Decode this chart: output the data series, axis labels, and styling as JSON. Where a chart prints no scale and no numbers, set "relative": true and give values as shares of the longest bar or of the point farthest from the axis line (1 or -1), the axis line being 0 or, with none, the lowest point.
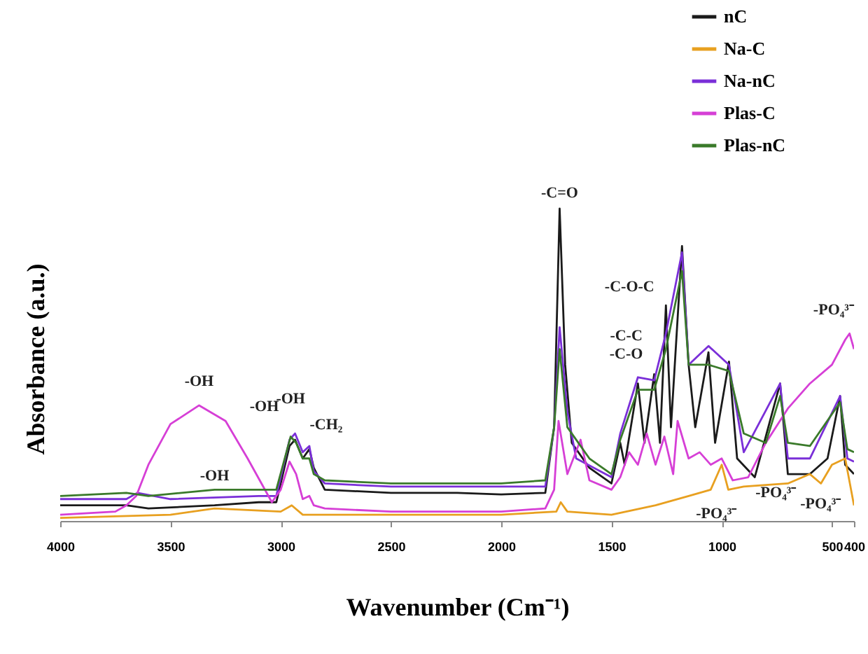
{
  "chart_data": {
    "type": "line",
    "relative": true,
    "xlabel": "Wavenumber (Cm⁻¹)",
    "ylabel": "Absorbance (a.u.)",
    "xlim": [
      4000,
      400
    ],
    "xticks": [
      4000,
      3500,
      3000,
      2500,
      2000,
      1500,
      1000,
      500,
      400
    ],
    "grid": false,
    "legend": "top right",
    "line_style": "solid",
    "marker": "none",
    "series": [
      {
        "name": "nC",
        "color": "#1a1a1a",
        "x": [
          4000,
          3700,
          3600,
          3300,
          3100,
          3020,
          2960,
          2935,
          2900,
          2870,
          2850,
          2800,
          2500,
          2200,
          2000,
          1800,
          1760,
          1735,
          1710,
          1680,
          1600,
          1500,
          1460,
          1440,
          1380,
          1350,
          1306,
          1280,
          1253,
          1230,
          1180,
          1150,
          1120,
          1060,
          1030,
          967,
          930,
          850,
          735,
          700,
          600,
          520,
          463,
          440,
          400
        ],
        "values": [
          0.05,
          0.05,
          0.04,
          0.05,
          0.06,
          0.06,
          0.24,
          0.26,
          0.2,
          0.23,
          0.17,
          0.1,
          0.09,
          0.09,
          0.085,
          0.09,
          0.3,
          1.0,
          0.5,
          0.25,
          0.17,
          0.12,
          0.25,
          0.18,
          0.44,
          0.25,
          0.47,
          0.25,
          0.69,
          0.3,
          0.88,
          0.5,
          0.3,
          0.54,
          0.25,
          0.51,
          0.2,
          0.14,
          0.44,
          0.15,
          0.15,
          0.2,
          0.4,
          0.18,
          0.15
        ]
      },
      {
        "name": "Na-C",
        "color": "#e8a020",
        "x": [
          4000,
          3500,
          3300,
          3000,
          2950,
          2900,
          2500,
          2000,
          1750,
          1730,
          1700,
          1500,
          1300,
          1150,
          1050,
          1000,
          970,
          900,
          700,
          600,
          550,
          500,
          440,
          400
        ],
        "values": [
          0.01,
          0.02,
          0.04,
          0.03,
          0.05,
          0.02,
          0.02,
          0.02,
          0.03,
          0.06,
          0.03,
          0.02,
          0.05,
          0.08,
          0.1,
          0.18,
          0.1,
          0.11,
          0.12,
          0.15,
          0.12,
          0.18,
          0.2,
          0.05
        ]
      },
      {
        "name": "Na-nC",
        "color": "#7a2fd8",
        "x": [
          4000,
          3700,
          3650,
          3500,
          3100,
          3020,
          2960,
          2935,
          2900,
          2870,
          2850,
          2800,
          2500,
          2000,
          1800,
          1760,
          1735,
          1700,
          1660,
          1500,
          1460,
          1380,
          1306,
          1253,
          1180,
          1150,
          1060,
          967,
          900,
          735,
          700,
          600,
          463,
          430,
          400
        ],
        "values": [
          0.07,
          0.07,
          0.09,
          0.07,
          0.08,
          0.08,
          0.26,
          0.28,
          0.22,
          0.24,
          0.16,
          0.12,
          0.11,
          0.11,
          0.11,
          0.3,
          0.62,
          0.35,
          0.2,
          0.14,
          0.28,
          0.46,
          0.45,
          0.6,
          0.86,
          0.5,
          0.56,
          0.5,
          0.22,
          0.44,
          0.2,
          0.2,
          0.4,
          0.2,
          0.19
        ]
      },
      {
        "name": "Plas-C",
        "color": "#d63fd6",
        "x": [
          4000,
          3750,
          3700,
          3655,
          3600,
          3500,
          3370,
          3250,
          3150,
          3040,
          3000,
          2960,
          2930,
          2900,
          2870,
          2850,
          2800,
          2500,
          2000,
          1800,
          1760,
          1740,
          1700,
          1640,
          1600,
          1500,
          1460,
          1420,
          1380,
          1340,
          1300,
          1260,
          1220,
          1200,
          1150,
          1100,
          1050,
          1000,
          950,
          880,
          800,
          700,
          600,
          500,
          440,
          420,
          400
        ],
        "values": [
          0.02,
          0.03,
          0.05,
          0.08,
          0.18,
          0.31,
          0.37,
          0.32,
          0.2,
          0.06,
          0.1,
          0.19,
          0.15,
          0.07,
          0.08,
          0.05,
          0.04,
          0.03,
          0.03,
          0.04,
          0.1,
          0.32,
          0.15,
          0.26,
          0.13,
          0.1,
          0.14,
          0.22,
          0.18,
          0.28,
          0.18,
          0.27,
          0.15,
          0.32,
          0.2,
          0.22,
          0.18,
          0.2,
          0.13,
          0.14,
          0.25,
          0.36,
          0.44,
          0.5,
          0.58,
          0.6,
          0.55
        ]
      },
      {
        "name": "Plas-nC",
        "color": "#3a7a2a",
        "x": [
          4000,
          3700,
          3600,
          3300,
          3020,
          2955,
          2930,
          2900,
          2870,
          2850,
          2800,
          2500,
          2000,
          1800,
          1760,
          1735,
          1700,
          1600,
          1500,
          1460,
          1380,
          1306,
          1253,
          1180,
          1150,
          1060,
          967,
          900,
          800,
          735,
          700,
          600,
          463,
          430,
          400
        ],
        "values": [
          0.08,
          0.09,
          0.08,
          0.1,
          0.1,
          0.27,
          0.25,
          0.2,
          0.2,
          0.15,
          0.13,
          0.12,
          0.12,
          0.13,
          0.3,
          0.55,
          0.3,
          0.2,
          0.15,
          0.26,
          0.42,
          0.42,
          0.55,
          0.8,
          0.5,
          0.5,
          0.48,
          0.28,
          0.25,
          0.4,
          0.25,
          0.24,
          0.38,
          0.23,
          0.22
        ]
      }
    ],
    "annotations": [
      {
        "text": "-OH",
        "x": 3370,
        "y": 0.37
      },
      {
        "text": "-OH",
        "x": 3300,
        "y": 0.04
      },
      {
        "text": "-OH",
        "x": 2935,
        "y": 0.28
      },
      {
        "text": "-OH",
        "x": 2955,
        "y": 0.27
      },
      {
        "text": "-CH₂",
        "x": 2870,
        "y": 0.24
      },
      {
        "text": "-C=O",
        "x": 1735,
        "y": 1.0
      },
      {
        "text": "-C-O-C",
        "x": 1253,
        "y": 0.69
      },
      {
        "text": "-C-C\n-C-O",
        "x": 1306,
        "y": 0.47
      },
      {
        "text": "-PO₄³⁻",
        "x": 440,
        "y": 0.58
      },
      {
        "text": "-PO₄³⁻",
        "x": 1150,
        "y": 0.08
      },
      {
        "text": "-PO₄³⁻",
        "x": 880,
        "y": 0.14
      },
      {
        "text": "-PO₄³⁻",
        "x": 550,
        "y": 0.12
      }
    ]
  }
}
